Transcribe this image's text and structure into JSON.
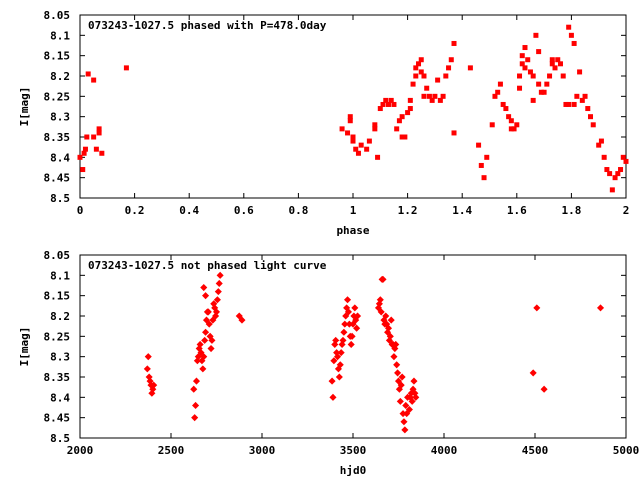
{
  "chart_data": [
    {
      "type": "scatter",
      "title": "073243-1027.5 phased with P=478.0day",
      "xlabel": "phase",
      "ylabel": "I[mag]",
      "xlim": [
        0,
        2
      ],
      "ylim": [
        8.5,
        8.05
      ],
      "y_reversed": true,
      "grid": false,
      "color": "#ff0000",
      "x_ticks": [
        "0",
        "0.2",
        "0.4",
        "0.6",
        "0.8",
        "1",
        "1.2",
        "1.4",
        "1.6",
        "1.8",
        "2"
      ],
      "x_tick_values": [
        0,
        0.2,
        0.4,
        0.6,
        0.8,
        1.0,
        1.2,
        1.4,
        1.6,
        1.8,
        2.0
      ],
      "y_ticks": [
        "8.05",
        "8.1",
        "8.15",
        "8.2",
        "8.25",
        "8.3",
        "8.35",
        "8.4",
        "8.45",
        "8.5"
      ],
      "y_tick_values": [
        8.05,
        8.1,
        8.15,
        8.2,
        8.25,
        8.3,
        8.35,
        8.4,
        8.45,
        8.5
      ],
      "points": [
        [
          0.0,
          8.4
        ],
        [
          0.01,
          8.43
        ],
        [
          0.015,
          8.39
        ],
        [
          0.02,
          8.38
        ],
        [
          0.025,
          8.35
        ],
        [
          0.03,
          8.195
        ],
        [
          0.05,
          8.21
        ],
        [
          0.05,
          8.35
        ],
        [
          0.06,
          8.38
        ],
        [
          0.07,
          8.33
        ],
        [
          0.07,
          8.34
        ],
        [
          0.08,
          8.39
        ],
        [
          0.17,
          8.18
        ],
        [
          0.96,
          8.33
        ],
        [
          0.98,
          8.34
        ],
        [
          0.99,
          8.3
        ],
        [
          0.99,
          8.31
        ],
        [
          1.0,
          8.35
        ],
        [
          1.0,
          8.36
        ],
        [
          1.01,
          8.38
        ],
        [
          1.02,
          8.39
        ],
        [
          1.03,
          8.37
        ],
        [
          1.05,
          8.38
        ],
        [
          1.06,
          8.36
        ],
        [
          1.08,
          8.32
        ],
        [
          1.08,
          8.33
        ],
        [
          1.09,
          8.4
        ],
        [
          1.1,
          8.28
        ],
        [
          1.11,
          8.27
        ],
        [
          1.12,
          8.26
        ],
        [
          1.13,
          8.27
        ],
        [
          1.14,
          8.26
        ],
        [
          1.15,
          8.27
        ],
        [
          1.16,
          8.33
        ],
        [
          1.17,
          8.31
        ],
        [
          1.18,
          8.3
        ],
        [
          1.18,
          8.35
        ],
        [
          1.19,
          8.35
        ],
        [
          1.2,
          8.29
        ],
        [
          1.21,
          8.26
        ],
        [
          1.21,
          8.28
        ],
        [
          1.22,
          8.22
        ],
        [
          1.23,
          8.2
        ],
        [
          1.23,
          8.18
        ],
        [
          1.24,
          8.17
        ],
        [
          1.25,
          8.16
        ],
        [
          1.25,
          8.19
        ],
        [
          1.26,
          8.2
        ],
        [
          1.26,
          8.25
        ],
        [
          1.27,
          8.23
        ],
        [
          1.28,
          8.25
        ],
        [
          1.29,
          8.26
        ],
        [
          1.3,
          8.25
        ],
        [
          1.31,
          8.21
        ],
        [
          1.32,
          8.26
        ],
        [
          1.33,
          8.25
        ],
        [
          1.34,
          8.2
        ],
        [
          1.35,
          8.18
        ],
        [
          1.36,
          8.16
        ],
        [
          1.37,
          8.12
        ],
        [
          1.37,
          8.34
        ],
        [
          1.43,
          8.18
        ],
        [
          1.46,
          8.37
        ],
        [
          1.47,
          8.42
        ],
        [
          1.48,
          8.45
        ],
        [
          1.49,
          8.4
        ],
        [
          1.51,
          8.32
        ],
        [
          1.52,
          8.25
        ],
        [
          1.53,
          8.24
        ],
        [
          1.54,
          8.22
        ],
        [
          1.55,
          8.27
        ],
        [
          1.56,
          8.28
        ],
        [
          1.57,
          8.3
        ],
        [
          1.58,
          8.31
        ],
        [
          1.58,
          8.33
        ],
        [
          1.59,
          8.33
        ],
        [
          1.6,
          8.32
        ],
        [
          1.61,
          8.2
        ],
        [
          1.61,
          8.23
        ],
        [
          1.62,
          8.17
        ],
        [
          1.62,
          8.15
        ],
        [
          1.63,
          8.13
        ],
        [
          1.63,
          8.18
        ],
        [
          1.64,
          8.16
        ],
        [
          1.65,
          8.19
        ],
        [
          1.66,
          8.2
        ],
        [
          1.66,
          8.26
        ],
        [
          1.67,
          8.1
        ],
        [
          1.68,
          8.14
        ],
        [
          1.68,
          8.22
        ],
        [
          1.69,
          8.24
        ],
        [
          1.7,
          8.24
        ],
        [
          1.71,
          8.22
        ],
        [
          1.72,
          8.2
        ],
        [
          1.73,
          8.17
        ],
        [
          1.73,
          8.16
        ],
        [
          1.74,
          8.18
        ],
        [
          1.75,
          8.16
        ],
        [
          1.76,
          8.17
        ],
        [
          1.77,
          8.2
        ],
        [
          1.78,
          8.27
        ],
        [
          1.79,
          8.27
        ],
        [
          1.79,
          8.08
        ],
        [
          1.8,
          8.1
        ],
        [
          1.81,
          8.12
        ],
        [
          1.81,
          8.27
        ],
        [
          1.82,
          8.25
        ],
        [
          1.83,
          8.19
        ],
        [
          1.84,
          8.26
        ],
        [
          1.85,
          8.25
        ],
        [
          1.86,
          8.28
        ],
        [
          1.87,
          8.3
        ],
        [
          1.88,
          8.32
        ],
        [
          1.9,
          8.37
        ],
        [
          1.91,
          8.36
        ],
        [
          1.92,
          8.4
        ],
        [
          1.93,
          8.43
        ],
        [
          1.94,
          8.44
        ],
        [
          1.95,
          8.48
        ],
        [
          1.96,
          8.45
        ],
        [
          1.97,
          8.44
        ],
        [
          1.98,
          8.43
        ],
        [
          1.99,
          8.4
        ],
        [
          2.0,
          8.41
        ]
      ]
    },
    {
      "type": "scatter",
      "title": "073243-1027.5 not phased light curve",
      "xlabel": "hjd0",
      "ylabel": "I[mag]",
      "xlim": [
        2000,
        5000
      ],
      "ylim": [
        8.5,
        8.05
      ],
      "y_reversed": true,
      "grid": false,
      "color": "#ff0000",
      "x_ticks": [
        "2000",
        "2500",
        "3000",
        "3500",
        "4000",
        "4500",
        "5000"
      ],
      "x_tick_values": [
        2000,
        2500,
        3000,
        3500,
        4000,
        4500,
        5000
      ],
      "y_ticks": [
        "8.05",
        "8.1",
        "8.15",
        "8.2",
        "8.25",
        "8.3",
        "8.35",
        "8.4",
        "8.45",
        "8.5"
      ],
      "y_tick_values": [
        8.05,
        8.1,
        8.15,
        8.2,
        8.25,
        8.3,
        8.35,
        8.4,
        8.45,
        8.5
      ],
      "points": [
        [
          2370,
          8.33
        ],
        [
          2375,
          8.3
        ],
        [
          2380,
          8.35
        ],
        [
          2385,
          8.36
        ],
        [
          2390,
          8.37
        ],
        [
          2395,
          8.39
        ],
        [
          2400,
          8.38
        ],
        [
          2405,
          8.37
        ],
        [
          2625,
          8.38
        ],
        [
          2630,
          8.45
        ],
        [
          2635,
          8.42
        ],
        [
          2640,
          8.36
        ],
        [
          2645,
          8.31
        ],
        [
          2650,
          8.3
        ],
        [
          2655,
          8.28
        ],
        [
          2660,
          8.27
        ],
        [
          2665,
          8.29
        ],
        [
          2670,
          8.31
        ],
        [
          2675,
          8.33
        ],
        [
          2680,
          8.3
        ],
        [
          2685,
          8.26
        ],
        [
          2690,
          8.24
        ],
        [
          2695,
          8.21
        ],
        [
          2700,
          8.19
        ],
        [
          2705,
          8.19
        ],
        [
          2710,
          8.22
        ],
        [
          2715,
          8.25
        ],
        [
          2720,
          8.28
        ],
        [
          2725,
          8.26
        ],
        [
          2730,
          8.21
        ],
        [
          2735,
          8.17
        ],
        [
          2740,
          8.18
        ],
        [
          2745,
          8.2
        ],
        [
          2750,
          8.19
        ],
        [
          2755,
          8.16
        ],
        [
          2760,
          8.14
        ],
        [
          2765,
          8.12
        ],
        [
          2770,
          8.1
        ],
        [
          2680,
          8.13
        ],
        [
          2690,
          8.15
        ],
        [
          2875,
          8.2
        ],
        [
          2890,
          8.21
        ],
        [
          3385,
          8.36
        ],
        [
          3390,
          8.4
        ],
        [
          3395,
          8.31
        ],
        [
          3400,
          8.27
        ],
        [
          3405,
          8.26
        ],
        [
          3410,
          8.29
        ],
        [
          3415,
          8.3
        ],
        [
          3420,
          8.33
        ],
        [
          3425,
          8.35
        ],
        [
          3430,
          8.32
        ],
        [
          3435,
          8.29
        ],
        [
          3440,
          8.27
        ],
        [
          3445,
          8.26
        ],
        [
          3450,
          8.24
        ],
        [
          3455,
          8.22
        ],
        [
          3460,
          8.2
        ],
        [
          3465,
          8.18
        ],
        [
          3470,
          8.16
        ],
        [
          3475,
          8.19
        ],
        [
          3480,
          8.22
        ],
        [
          3485,
          8.25
        ],
        [
          3490,
          8.27
        ],
        [
          3495,
          8.25
        ],
        [
          3500,
          8.22
        ],
        [
          3505,
          8.2
        ],
        [
          3510,
          8.18
        ],
        [
          3515,
          8.21
        ],
        [
          3520,
          8.23
        ],
        [
          3525,
          8.2
        ],
        [
          3640,
          8.18
        ],
        [
          3645,
          8.17
        ],
        [
          3650,
          8.16
        ],
        [
          3655,
          8.19
        ],
        [
          3660,
          8.11
        ],
        [
          3665,
          8.11
        ],
        [
          3670,
          8.21
        ],
        [
          3675,
          8.22
        ],
        [
          3680,
          8.2
        ],
        [
          3685,
          8.22
        ],
        [
          3690,
          8.24
        ],
        [
          3695,
          8.23
        ],
        [
          3700,
          8.26
        ],
        [
          3705,
          8.25
        ],
        [
          3710,
          8.21
        ],
        [
          3715,
          8.27
        ],
        [
          3720,
          8.27
        ],
        [
          3725,
          8.3
        ],
        [
          3730,
          8.28
        ],
        [
          3735,
          8.27
        ],
        [
          3740,
          8.32
        ],
        [
          3745,
          8.34
        ],
        [
          3750,
          8.36
        ],
        [
          3755,
          8.38
        ],
        [
          3760,
          8.41
        ],
        [
          3765,
          8.37
        ],
        [
          3770,
          8.35
        ],
        [
          3775,
          8.44
        ],
        [
          3780,
          8.46
        ],
        [
          3785,
          8.48
        ],
        [
          3790,
          8.42
        ],
        [
          3795,
          8.44
        ],
        [
          3800,
          8.4
        ],
        [
          3810,
          8.43
        ],
        [
          3815,
          8.4
        ],
        [
          3820,
          8.39
        ],
        [
          3825,
          8.41
        ],
        [
          3830,
          8.38
        ],
        [
          3835,
          8.36
        ],
        [
          3840,
          8.39
        ],
        [
          3845,
          8.4
        ],
        [
          4490,
          8.34
        ],
        [
          4510,
          8.18
        ],
        [
          4550,
          8.38
        ],
        [
          4860,
          8.18
        ]
      ]
    }
  ]
}
